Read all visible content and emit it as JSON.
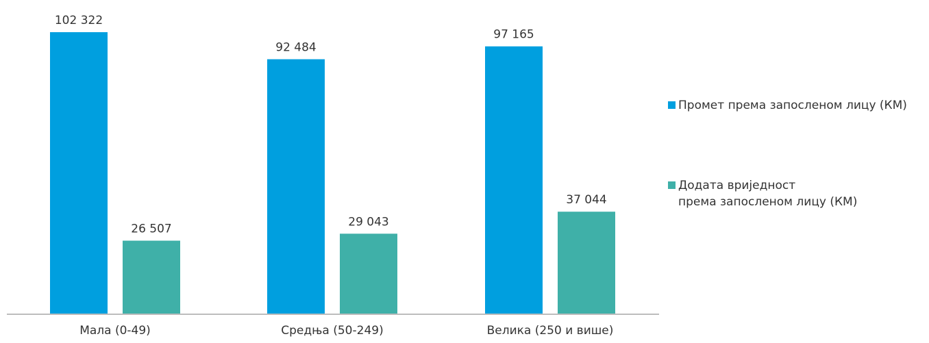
{
  "chart_data": {
    "type": "bar",
    "categories": [
      "Мала (0-49)",
      "Средња (50-249)",
      "Велика (250 и више)"
    ],
    "series": [
      {
        "name": "Промет према запосленом лицу (КМ)",
        "values": [
          102322,
          92484,
          97165
        ],
        "labels": [
          "102 322",
          "92 484",
          "97 165"
        ],
        "color": "#009fdf"
      },
      {
        "name": "Додата вриједност према запосленом лицу (КМ)",
        "name_lines": [
          "Додата вриједност",
          "према запосленом лицу (КМ)"
        ],
        "values": [
          26507,
          29043,
          37044
        ],
        "labels": [
          "26 507",
          "29 043",
          "37 044"
        ],
        "color": "#3fb0a8"
      }
    ],
    "ylim": [
      0,
      105000
    ],
    "grid": false,
    "legend": "right",
    "axis_color": "#a6a6a6"
  }
}
